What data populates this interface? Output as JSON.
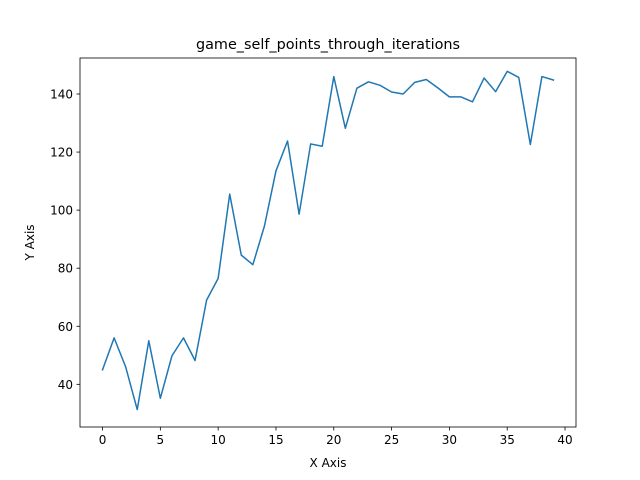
{
  "chart_data": {
    "type": "line",
    "title": "game_self_points_through_iterations",
    "xlabel": "X Axis",
    "ylabel": "Y Axis",
    "xlim": [
      -1.95,
      40.95
    ],
    "ylim": [
      25.3,
      152.4
    ],
    "xticks": [
      0,
      5,
      10,
      15,
      20,
      25,
      30,
      35,
      40
    ],
    "yticks": [
      40,
      60,
      80,
      100,
      120,
      140
    ],
    "grid": false,
    "legend": false,
    "series": [
      {
        "color": "#1f77b4",
        "x": [
          0,
          1,
          2,
          3,
          4,
          5,
          6,
          7,
          8,
          9,
          10,
          11,
          12,
          13,
          14,
          15,
          16,
          17,
          18,
          19,
          20,
          21,
          22,
          23,
          24,
          25,
          26,
          27,
          28,
          29,
          30,
          31,
          32,
          33,
          34,
          35,
          36,
          37,
          38,
          39
        ],
        "y": [
          45,
          56,
          46,
          31.3,
          55,
          35.2,
          49.8,
          56,
          48.2,
          69,
          76.5,
          105.5,
          84.5,
          81.2,
          94.5,
          113.5,
          123.8,
          98.6,
          122.8,
          122,
          146,
          128.2,
          142,
          144.2,
          143,
          140.7,
          140,
          144,
          145,
          142.1,
          139,
          139,
          137.3,
          145.5,
          140.8,
          147.8,
          145.7,
          122.6,
          146,
          144.8
        ]
      }
    ]
  }
}
